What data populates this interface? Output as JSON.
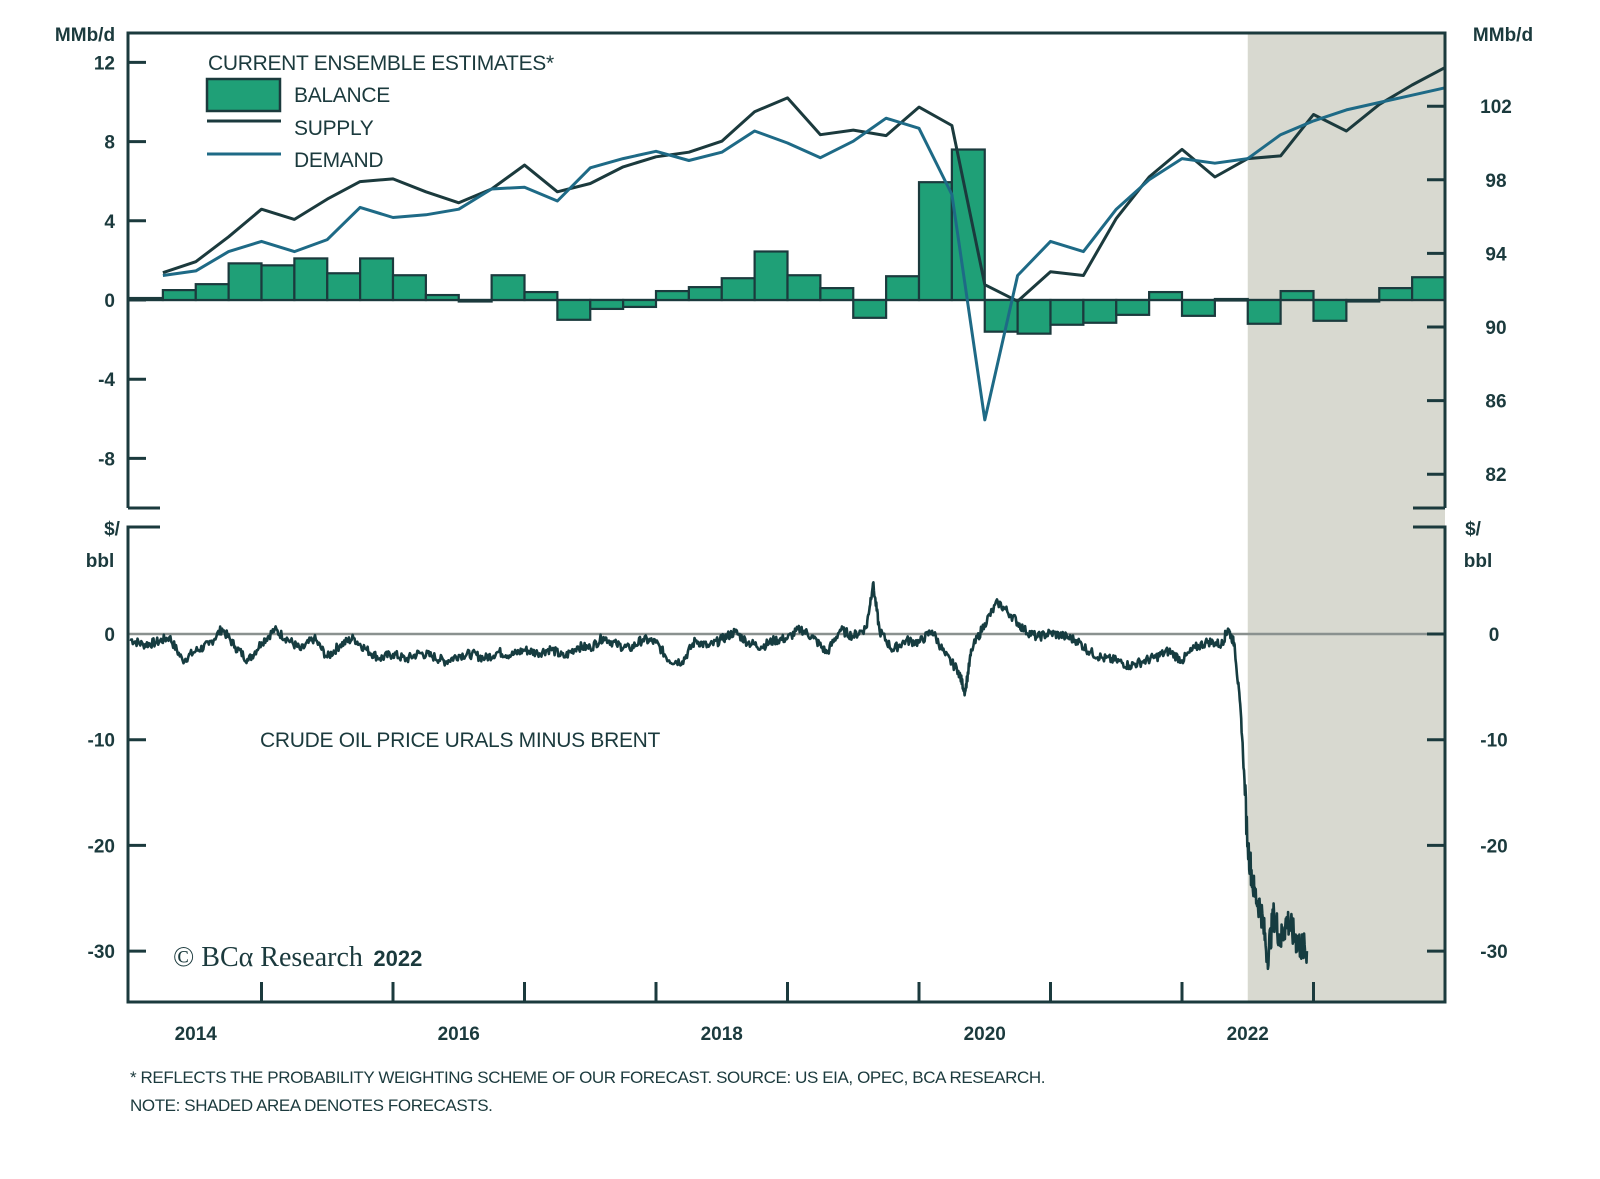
{
  "chart_data": [
    {
      "type": "bar+line",
      "panel": "top",
      "legend_title": "CURRENT ENSEMBLE ESTIMATES*",
      "legend_position": "top-left",
      "left_axis": {
        "label": "MMb/d",
        "ticks": [
          12,
          8,
          4,
          0,
          -4,
          -8
        ],
        "ylim": [
          -10.4,
          13.5
        ]
      },
      "right_axis": {
        "label": "MMb/d",
        "ticks": [
          102,
          98,
          94,
          90,
          86,
          82
        ],
        "ylim": [
          81,
          105
        ]
      },
      "quarters": [
        "2013Q3",
        "2013Q4",
        "2014Q1",
        "2014Q2",
        "2014Q3",
        "2014Q4",
        "2015Q1",
        "2015Q2",
        "2015Q3",
        "2015Q4",
        "2016Q1",
        "2016Q2",
        "2016Q3",
        "2016Q4",
        "2017Q1",
        "2017Q2",
        "2017Q3",
        "2017Q4",
        "2018Q1",
        "2018Q2",
        "2018Q3",
        "2018Q4",
        "2019Q1",
        "2019Q2",
        "2019Q3",
        "2019Q4",
        "2020Q1",
        "2020Q2",
        "2020Q3",
        "2020Q4",
        "2021Q1",
        "2021Q2",
        "2021Q3",
        "2021Q4",
        "2022Q1",
        "2022Q2",
        "2022Q3",
        "2022Q4",
        "2023Q1",
        "2023Q2"
      ],
      "series": [
        {
          "name": "BALANCE",
          "kind": "bar",
          "axis": "left",
          "color": "#1fa077",
          "values": [
            0.1,
            0.5,
            0.8,
            1.85,
            1.75,
            2.1,
            1.35,
            2.1,
            1.25,
            0.25,
            0.0,
            1.25,
            0.4,
            -1.0,
            -0.45,
            -0.35,
            0.45,
            0.65,
            1.1,
            2.45,
            1.25,
            0.6,
            -0.9,
            1.2,
            5.95,
            7.6,
            -1.6,
            -1.7,
            -1.25,
            -1.15,
            -0.75,
            0.4,
            -0.8,
            0.05,
            -1.2,
            0.45,
            -1.05,
            -0.05,
            0.6,
            1.15
          ]
        },
        {
          "name": "SUPPLY",
          "kind": "line",
          "axis": "right",
          "color": "#1b3a3d",
          "values": [
            92.95,
            93.55,
            94.9,
            96.4,
            95.85,
            96.95,
            97.9,
            98.05,
            97.35,
            96.75,
            97.5,
            98.8,
            97.35,
            97.8,
            98.7,
            99.25,
            99.5,
            100.1,
            101.7,
            102.45,
            100.45,
            100.7,
            100.4,
            101.95,
            100.95,
            92.3,
            91.4,
            93.0,
            92.8,
            95.9,
            98.15,
            99.65,
            98.15,
            99.15,
            99.3,
            101.55,
            100.65,
            102.1,
            103.15,
            104.1
          ]
        },
        {
          "name": "DEMAND",
          "kind": "line",
          "axis": "right",
          "color": "#1e6a86",
          "values": [
            92.8,
            93.05,
            94.1,
            94.65,
            94.1,
            94.75,
            96.5,
            95.95,
            96.1,
            96.4,
            97.5,
            97.6,
            96.85,
            98.65,
            99.15,
            99.55,
            99.05,
            99.5,
            100.65,
            100.0,
            99.2,
            100.1,
            101.35,
            100.8,
            97.2,
            84.95,
            92.8,
            94.65,
            94.1,
            96.4,
            98.0,
            99.15,
            98.9,
            99.15,
            100.45,
            101.2,
            101.8,
            102.2,
            102.6,
            103.0
          ]
        }
      ],
      "forecast_shading": {
        "from": "2022Q1",
        "to": "2023Q2",
        "color": "#d8d9d0"
      }
    },
    {
      "type": "line",
      "panel": "bottom",
      "title": "CRUDE OIL PRICE URALS MINUS BRENT",
      "left_axis": {
        "label": "$/ bbl",
        "ticks": [
          0,
          -10,
          -20,
          -30
        ],
        "ylim": [
          -34.5,
          10
        ]
      },
      "right_axis": {
        "label": "$/ bbl",
        "ticks": [
          0,
          -10,
          -20,
          -30
        ],
        "ylim": [
          -34.5,
          10
        ]
      },
      "zero_line": true,
      "series": [
        {
          "name": "URALS MINUS BRENT",
          "color": "#163c40",
          "x": [
            2013.5,
            2013.6,
            2013.7,
            2013.8,
            2013.9,
            2014.0,
            2014.1,
            2014.2,
            2014.3,
            2014.4,
            2014.5,
            2014.6,
            2014.7,
            2014.8,
            2014.9,
            2015.0,
            2015.1,
            2015.2,
            2015.3,
            2015.4,
            2015.5,
            2015.6,
            2015.7,
            2015.8,
            2015.9,
            2016.0,
            2016.1,
            2016.2,
            2016.3,
            2016.4,
            2016.5,
            2016.6,
            2016.7,
            2016.8,
            2016.9,
            2017.0,
            2017.1,
            2017.2,
            2017.3,
            2017.4,
            2017.5,
            2017.6,
            2017.7,
            2017.8,
            2017.9,
            2018.0,
            2018.1,
            2018.2,
            2018.3,
            2018.4,
            2018.5,
            2018.6,
            2018.7,
            2018.8,
            2018.9,
            2019.0,
            2019.1,
            2019.15,
            2019.2,
            2019.3,
            2019.4,
            2019.5,
            2019.6,
            2019.7,
            2019.8,
            2019.85,
            2019.9,
            2020.0,
            2020.1,
            2020.2,
            2020.3,
            2020.4,
            2020.5,
            2020.6,
            2020.7,
            2020.8,
            2020.9,
            2021.0,
            2021.1,
            2021.2,
            2021.3,
            2021.4,
            2021.5,
            2021.6,
            2021.7,
            2021.8,
            2021.85,
            2021.9,
            2021.95,
            2022.0,
            2022.05,
            2022.1,
            2022.15,
            2022.2,
            2022.25,
            2022.3,
            2022.35,
            2022.4,
            2022.45
          ],
          "values": [
            -0.5,
            -1.0,
            -0.8,
            -0.3,
            -2.5,
            -1.6,
            -1.0,
            0.5,
            -1.2,
            -2.5,
            -0.8,
            0.4,
            -0.5,
            -1.5,
            -0.4,
            -2.2,
            -1.0,
            -0.4,
            -1.5,
            -2.3,
            -1.9,
            -2.4,
            -1.8,
            -2.1,
            -2.6,
            -2.0,
            -1.9,
            -2.3,
            -1.7,
            -2.0,
            -1.5,
            -1.8,
            -1.4,
            -2.2,
            -1.2,
            -1.3,
            -0.3,
            -1.0,
            -1.4,
            -0.5,
            -0.8,
            -2.5,
            -2.6,
            -0.6,
            -1.2,
            -0.5,
            0.2,
            -0.8,
            -1.2,
            -0.6,
            -0.4,
            0.5,
            -0.4,
            -1.8,
            0.4,
            -0.2,
            0.6,
            4.8,
            0.3,
            -1.5,
            -0.6,
            -0.8,
            0.3,
            -2.0,
            -3.5,
            -5.5,
            -1.5,
            1.0,
            3.0,
            1.8,
            0.4,
            -0.3,
            0.1,
            -0.2,
            -0.6,
            -1.7,
            -2.3,
            -2.5,
            -3.0,
            -2.6,
            -2.2,
            -1.6,
            -2.5,
            -1.3,
            -0.7,
            -1.0,
            0.5,
            -1.0,
            -8.0,
            -20.0,
            -24.5,
            -26.0,
            -30.5,
            -26.5,
            -29.0,
            -27.0,
            -28.5,
            -29.5,
            -30.0
          ]
        }
      ]
    }
  ],
  "x_axis": {
    "ticks": [
      "2014",
      "2016",
      "2018",
      "2020",
      "2022"
    ]
  },
  "copyright": {
    "brand": "© BCα Research",
    "year": "2022"
  },
  "footnotes": {
    "line1": "* REFLECTS THE PROBABILITY WEIGHTING SCHEME OF OUR FORECAST. SOURCE: US EIA, OPEC, BCA RESEARCH.",
    "line2": "NOTE: SHADED AREA DENOTES FORECASTS."
  }
}
